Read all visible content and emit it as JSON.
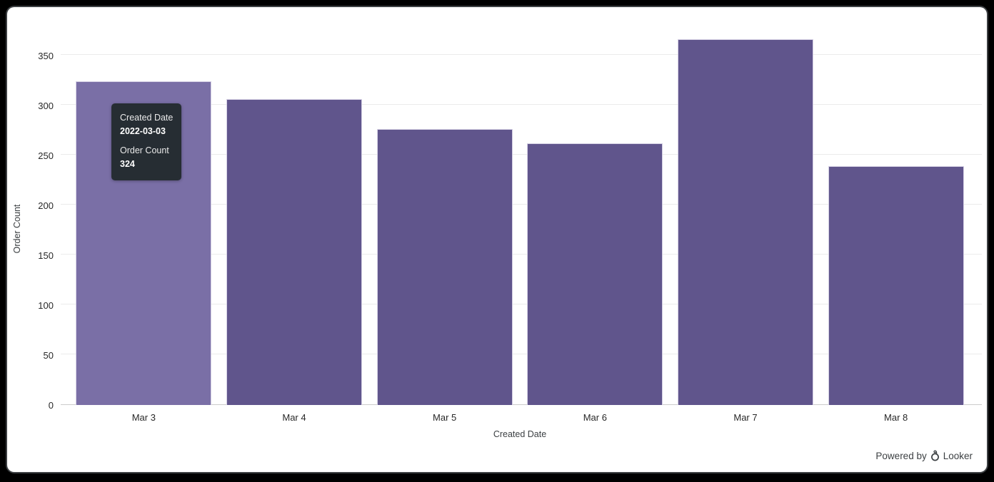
{
  "chart_data": {
    "type": "bar",
    "categories": [
      "Mar 3",
      "Mar 4",
      "Mar 5",
      "Mar 6",
      "Mar 7",
      "Mar 8"
    ],
    "values": [
      324,
      306,
      276,
      262,
      366,
      239
    ],
    "title": "",
    "xlabel": "Created Date",
    "ylabel": "Order Count",
    "yticks": [
      0,
      50,
      100,
      150,
      200,
      250,
      300,
      350
    ],
    "ylim": [
      0,
      377
    ],
    "grid": true,
    "legend": "none",
    "bar_color": "#60558c",
    "bar_hover_color": "#7a6fa6",
    "hovered_index": 0
  },
  "tooltip": {
    "field1_label": "Created Date",
    "field1_value": "2022-03-03",
    "field2_label": "Order Count",
    "field2_value": "324",
    "background": "#262d33"
  },
  "footer": {
    "powered_by_text": "Powered by",
    "brand": "Looker"
  }
}
